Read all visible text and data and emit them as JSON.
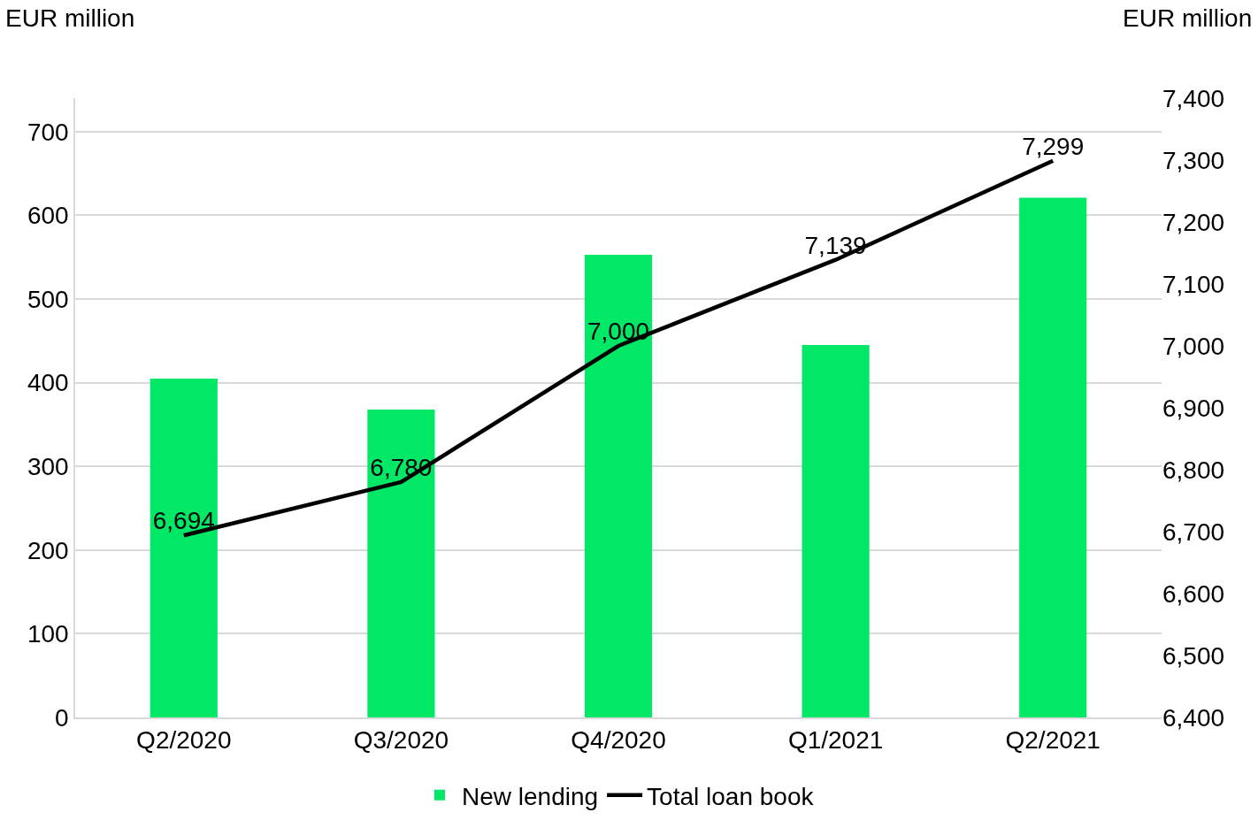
{
  "chart_data": {
    "type": "bar",
    "ylabel": "EUR million",
    "y2label": "EUR million",
    "categories": [
      "Q2/2020",
      "Q3/2020",
      "Q4/2020",
      "Q1/2021",
      "Q2/2021"
    ],
    "series": [
      {
        "name": "New lending",
        "color": "#00e865",
        "values": [
          405,
          368,
          553,
          445,
          621
        ]
      },
      {
        "name": "Total loan book",
        "type": "line",
        "axis": "y2",
        "color": "#000000",
        "values": [
          6694,
          6780,
          7000,
          7139,
          7299
        ],
        "value_labels": [
          "6,694",
          "6,780",
          "7,000",
          "7,139",
          "7,299"
        ]
      }
    ],
    "ylim": [
      0,
      740
    ],
    "yticks": [
      0,
      100,
      {
        "value": 200,
        "label": "200"
      },
      300,
      400,
      500,
      600,
      700
    ],
    "y2lim": [
      6400,
      7400
    ],
    "y2ticks": [
      {
        "value": 6400,
        "label": "6,400"
      },
      {
        "value": 6500,
        "label": "6,500"
      },
      {
        "value": 6600,
        "label": "6,600"
      },
      {
        "value": 6700,
        "label": "6,700"
      },
      {
        "value": 6800,
        "label": "6,800"
      },
      {
        "value": 6900,
        "label": "6,900"
      },
      {
        "value": 7000,
        "label": "7,000"
      },
      {
        "value": 7100,
        "label": "7,100"
      },
      {
        "value": 7200,
        "label": "7,200"
      },
      {
        "value": 7300,
        "label": "7,300"
      },
      {
        "value": 7400,
        "label": "7,400"
      }
    ],
    "grid": "y",
    "legend": "bottom",
    "marker": "none",
    "line_style": "solid"
  }
}
